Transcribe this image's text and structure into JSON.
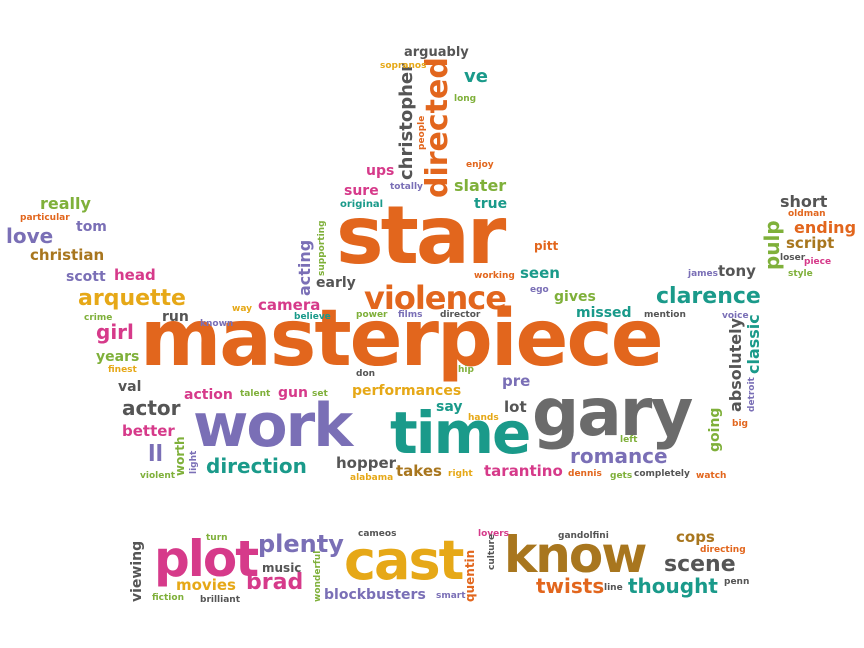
{
  "colors": {
    "orange": "#e2661d",
    "purple": "#7a6fb6",
    "teal": "#1a9a8a",
    "gray": "#6b6b6b",
    "green": "#7fb03a",
    "magenta": "#d63a8a",
    "gold": "#e6a817",
    "brown": "#a8761e",
    "darkgray": "#555555"
  },
  "words": {
    "masterpiece": "masterpiece",
    "star": "star",
    "work": "work",
    "time": "time",
    "gary": "gary",
    "cast": "cast",
    "know": "know",
    "plot": "plot",
    "violence": "violence",
    "directed": "directed",
    "clarence": "clarence",
    "arquette": "arquette",
    "romance": "romance",
    "direction": "direction",
    "plenty": "plenty",
    "brad": "brad",
    "scene": "scene",
    "thought": "thought",
    "twists": "twists",
    "performances": "performances",
    "love": "love",
    "christian": "christian",
    "really": "really",
    "tom": "tom",
    "particular": "particular",
    "scott": "scott",
    "head": "head",
    "girl": "girl",
    "years": "years",
    "finest": "finest",
    "crime": "crime",
    "val": "val",
    "actor": "actor",
    "better": "better",
    "ll": "ll",
    "worth": "worth",
    "violent": "violent",
    "light": "light",
    "run": "run",
    "known": "known",
    "way": "way",
    "camera": "camera",
    "acting": "acting",
    "supporting": "supporting",
    "believe": "believe",
    "early": "early",
    "action": "action",
    "talent": "talent",
    "gun": "gun",
    "set": "set",
    "don": "don",
    "power": "power",
    "films": "films",
    "director": "director",
    "hip": "hip",
    "pre": "pre",
    "say": "say",
    "hands": "hands",
    "lot": "lot",
    "hopper": "hopper",
    "alabama": "alabama",
    "takes": "takes",
    "right": "right",
    "tarantino": "tarantino",
    "dennis": "dennis",
    "gets": "gets",
    "completely": "completely",
    "watch": "watch",
    "left": "left",
    "going": "going",
    "big": "big",
    "detroit": "detroit",
    "absolutely": "absolutely",
    "classic": "classic",
    "voice": "voice",
    "mention": "mention",
    "missed": "missed",
    "gives": "gives",
    "ego": "ego",
    "working": "working",
    "seen": "seen",
    "pitt": "pitt",
    "true": "true",
    "slater": "slater",
    "totally": "totally",
    "original": "original",
    "sure": "sure",
    "ups": "ups",
    "christopher": "christopher",
    "people": "people",
    "enjoy": "enjoy",
    "long": "long",
    "ve": "ve",
    "arguably": "arguably",
    "sopranos": "sopranos",
    "short": "short",
    "oldman": "oldman",
    "ending": "ending",
    "script": "script",
    "loser": "loser",
    "piece": "piece",
    "style": "style",
    "pulp": "pulp",
    "james": "james",
    "tony": "tony",
    "viewing": "viewing",
    "movies": "movies",
    "fiction": "fiction",
    "brilliant": "brilliant",
    "turn": "turn",
    "music": "music",
    "wonderful": "wonderful",
    "cameos": "cameos",
    "blockbusters": "blockbusters",
    "smart": "smart",
    "lovers": "lovers",
    "culture": "culture",
    "quentin": "quentin",
    "gandolfini": "gandolfini",
    "line": "line",
    "cops": "cops",
    "directing": "directing",
    "penn": "penn"
  }
}
